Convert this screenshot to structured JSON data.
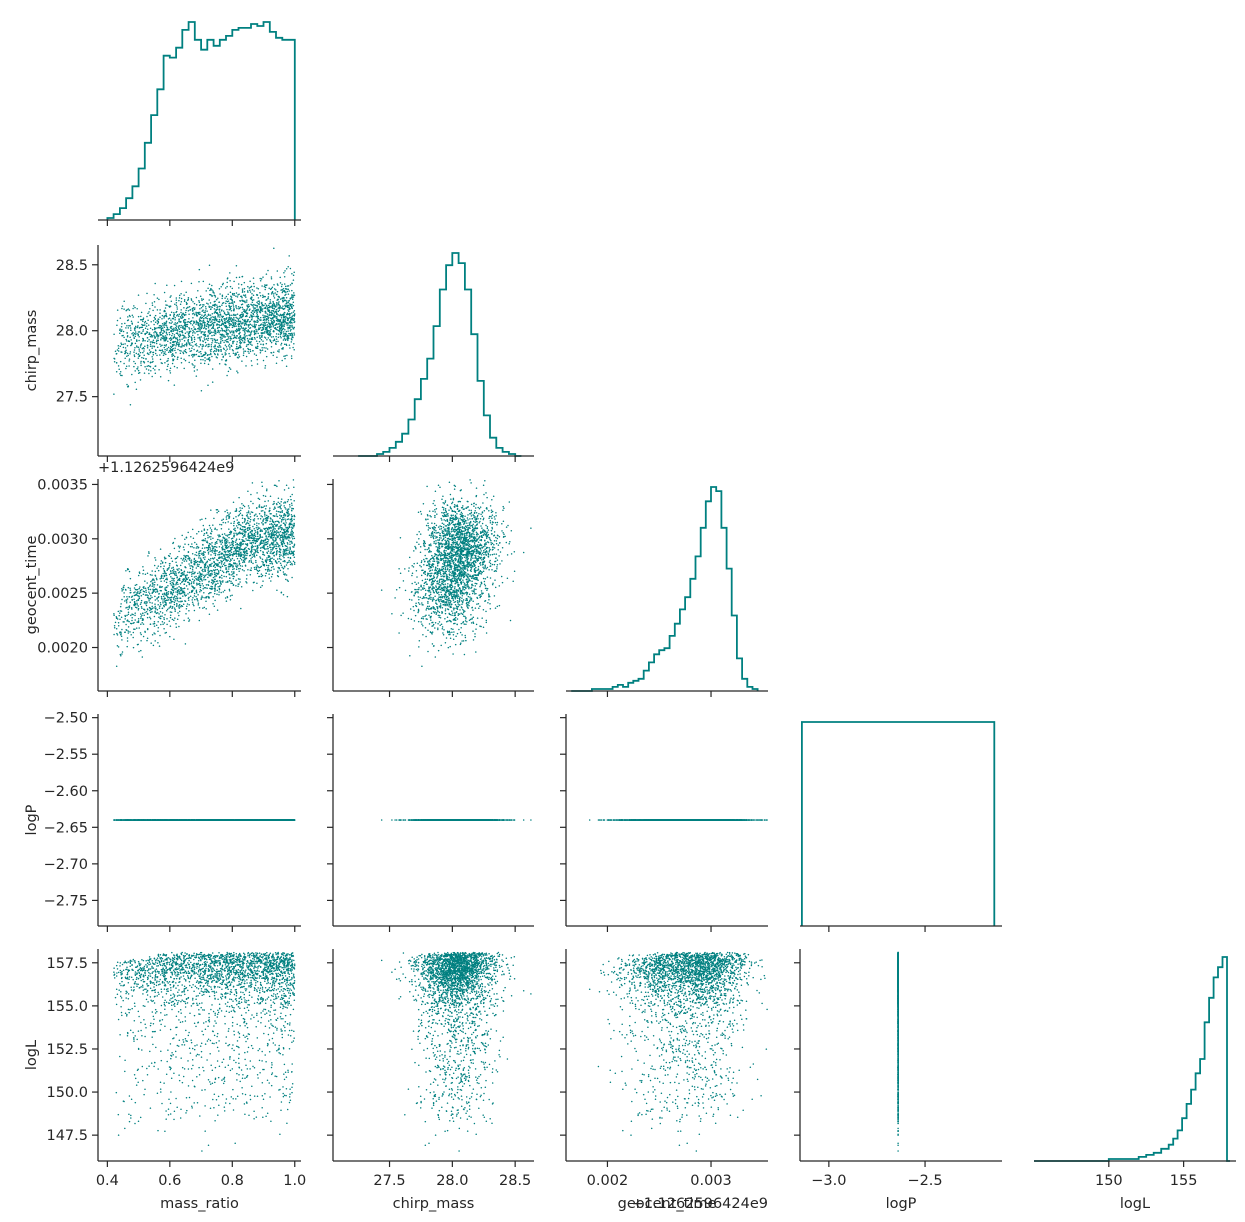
{
  "figure": {
    "type": "pairplot-corner",
    "color": "#008080",
    "variables": [
      "mass_ratio",
      "chirp_mass",
      "geocent_time",
      "logP",
      "logL"
    ],
    "offset_text": "+1.1262596424e9"
  },
  "chart_data": {
    "type": "scatter",
    "variables": [
      {
        "name": "mass_ratio",
        "range": [
          0.37,
          1.02
        ],
        "ticks": [
          0.4,
          0.6,
          0.8,
          1.0
        ],
        "tick_labels": [
          "0.4",
          "0.6",
          "0.8",
          "1.0"
        ],
        "histogram": {
          "bin_edges": [
            0.4,
            0.42,
            0.44,
            0.46,
            0.48,
            0.5,
            0.52,
            0.54,
            0.56,
            0.58,
            0.6,
            0.62,
            0.64,
            0.66,
            0.68,
            0.7,
            0.72,
            0.74,
            0.76,
            0.78,
            0.8,
            0.82,
            0.84,
            0.86,
            0.88,
            0.9,
            0.92,
            0.94,
            0.96,
            0.98,
            1.0
          ],
          "relative_heights": [
            0.01,
            0.03,
            0.06,
            0.11,
            0.17,
            0.26,
            0.39,
            0.53,
            0.66,
            0.83,
            0.82,
            0.87,
            0.96,
            1.0,
            0.91,
            0.86,
            0.91,
            0.88,
            0.91,
            0.93,
            0.96,
            0.97,
            0.97,
            0.99,
            0.98,
            1.0,
            0.95,
            0.92,
            0.91,
            0.91
          ]
        }
      },
      {
        "name": "chirp_mass",
        "range": [
          27.05,
          28.65
        ],
        "ticks": [
          27.5,
          28.0,
          28.5
        ],
        "tick_labels": [
          "27.5",
          "28.0",
          "28.5"
        ],
        "histogram": {
          "bin_edges": [
            27.25,
            27.3,
            27.35,
            27.4,
            27.45,
            27.5,
            27.55,
            27.6,
            27.65,
            27.7,
            27.75,
            27.8,
            27.85,
            27.9,
            27.95,
            28.0,
            28.05,
            28.1,
            28.15,
            28.2,
            28.25,
            28.3,
            28.35,
            28.4,
            28.45,
            28.5,
            28.55
          ],
          "relative_heights": [
            0.0,
            0.0,
            0.0,
            0.01,
            0.02,
            0.04,
            0.07,
            0.11,
            0.18,
            0.28,
            0.38,
            0.48,
            0.64,
            0.82,
            0.94,
            1.0,
            0.95,
            0.82,
            0.6,
            0.37,
            0.2,
            0.09,
            0.04,
            0.02,
            0.01,
            0.0
          ]
        }
      },
      {
        "name": "geocent_time",
        "range": [
          0.0016,
          0.00355
        ],
        "ticks": [
          0.002,
          0.0025,
          0.003,
          0.0035
        ],
        "tick_labels": [
          "0.0020",
          "0.0025",
          "0.0030",
          "0.0035"
        ],
        "bottom_tick_labels": [
          "0.002",
          "0.003"
        ],
        "bottom_ticks": [
          0.002,
          0.003
        ],
        "histogram": {
          "bin_edges": [
            0.00165,
            0.0017,
            0.00175,
            0.0018,
            0.00185,
            0.0019,
            0.00195,
            0.002,
            0.00205,
            0.0021,
            0.00215,
            0.0022,
            0.00225,
            0.0023,
            0.00235,
            0.0024,
            0.00245,
            0.0025,
            0.00255,
            0.0026,
            0.00265,
            0.0027,
            0.00275,
            0.0028,
            0.00285,
            0.0029,
            0.00295,
            0.003,
            0.00305,
            0.0031,
            0.00315,
            0.0032,
            0.00325,
            0.0033,
            0.00335,
            0.0034,
            0.00345
          ],
          "relative_heights": [
            0.0,
            0.0,
            0.0,
            0.0,
            0.01,
            0.01,
            0.01,
            0.01,
            0.02,
            0.03,
            0.02,
            0.04,
            0.05,
            0.06,
            0.1,
            0.14,
            0.18,
            0.2,
            0.21,
            0.27,
            0.33,
            0.4,
            0.46,
            0.55,
            0.66,
            0.8,
            0.93,
            1.0,
            0.98,
            0.8,
            0.6,
            0.37,
            0.16,
            0.06,
            0.02,
            0.01
          ]
        }
      },
      {
        "name": "logP",
        "range_y": [
          -2.785,
          -2.495
        ],
        "ticks_y": [
          -2.5,
          -2.55,
          -2.6,
          -2.65,
          -2.7,
          -2.75
        ],
        "tick_labels_y": [
          "−2.50",
          "−2.55",
          "−2.60",
          "−2.65",
          "−2.70",
          "−2.75"
        ],
        "range_x": [
          -3.15,
          -2.1
        ],
        "ticks_x": [
          -3.0,
          -2.5
        ],
        "tick_labels_x": [
          "−3.0",
          "−2.5"
        ],
        "constant_value": -2.64,
        "histogram": {
          "bin_edges": [
            -3.14,
            -2.14
          ],
          "relative_heights": [
            1.0
          ]
        }
      },
      {
        "name": "logL",
        "range": [
          146.0,
          158.3
        ],
        "ticks": [
          147.5,
          150.0,
          152.5,
          155.0,
          157.5
        ],
        "tick_labels": [
          "147.5",
          "150.0",
          "152.5",
          "155.0",
          "157.5"
        ],
        "range_x_hist": [
          145.0,
          158.5
        ],
        "ticks_x_hist": [
          150,
          155
        ],
        "tick_labels_x_hist": [
          "150",
          "155"
        ],
        "histogram": {
          "bin_edges": [
            145,
            149,
            150,
            151,
            152,
            152.5,
            153,
            153.5,
            154,
            154.3,
            154.6,
            154.9,
            155.2,
            155.5,
            155.8,
            156.1,
            156.4,
            156.7,
            157.0,
            157.3,
            157.6,
            157.9,
            158.1
          ],
          "relative_heights": [
            0.0,
            0.0,
            0.01,
            0.01,
            0.02,
            0.03,
            0.04,
            0.06,
            0.08,
            0.11,
            0.15,
            0.21,
            0.28,
            0.35,
            0.43,
            0.5,
            0.68,
            0.8,
            0.9,
            0.95,
            1.0,
            0.0
          ]
        }
      }
    ]
  }
}
